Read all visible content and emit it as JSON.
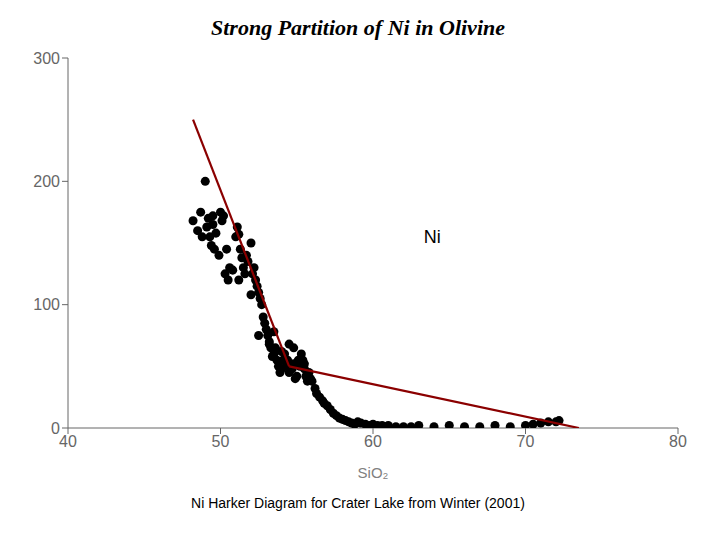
{
  "chart_data": {
    "type": "scatter",
    "title": "Strong Partition of Ni in Olivine",
    "subtitle": "Ni Harker Diagram for Crater Lake from Winter (2001)",
    "xlabel": "SiO₂",
    "xlim": [
      40,
      80
    ],
    "ylim": [
      0,
      300
    ],
    "xticks": [
      40,
      50,
      60,
      70,
      80
    ],
    "yticks": [
      0,
      100,
      200,
      300
    ],
    "grid": false,
    "annotations": [
      {
        "text": "Ni",
        "x": 63,
        "y": 155
      }
    ],
    "series": [
      {
        "type": "scatter",
        "marker": "circle",
        "color": "#000000",
        "x": [
          48.2,
          48.5,
          48.7,
          48.8,
          49.0,
          49.1,
          49.2,
          49.3,
          49.4,
          49.5,
          49.6,
          49.7,
          49.9,
          50.0,
          50.1,
          50.2,
          50.3,
          50.5,
          50.6,
          50.8,
          51.0,
          51.1,
          51.2,
          51.3,
          51.4,
          51.5,
          51.6,
          51.7,
          51.8,
          52.0,
          52.1,
          52.2,
          52.3,
          52.4,
          52.5,
          52.6,
          52.7,
          52.8,
          52.9,
          53.0,
          53.1,
          53.2,
          53.3,
          53.4,
          53.5,
          53.6,
          53.7,
          53.8,
          53.9,
          54.0,
          54.1,
          54.2,
          54.3,
          54.4,
          54.5,
          54.5,
          54.6,
          54.7,
          54.8,
          54.9,
          55.0,
          55.1,
          55.2,
          55.3,
          55.4,
          55.5,
          55.6,
          55.7,
          55.8,
          55.9,
          56.0,
          56.2,
          56.3,
          56.5,
          56.7,
          56.8,
          57.0,
          57.2,
          57.4,
          57.6,
          57.8,
          58.0,
          58.2,
          58.4,
          58.6,
          58.8,
          59.0,
          59.2,
          59.5,
          59.8,
          60.0,
          60.3,
          60.6,
          61.0,
          61.5,
          62.0,
          62.5,
          63.0,
          64.0,
          65.0,
          66.0,
          67.0,
          68.0,
          69.0,
          70.0,
          70.5,
          71.0,
          71.5,
          72.0,
          72.2,
          52.5,
          53.2,
          54.0,
          49.5,
          50.4,
          51.2,
          52.0,
          53.5,
          54.8,
          55.5
        ],
        "values": [
          168,
          160,
          175,
          155,
          200,
          163,
          170,
          155,
          148,
          172,
          145,
          158,
          140,
          175,
          168,
          172,
          125,
          120,
          130,
          128,
          155,
          163,
          157,
          145,
          138,
          130,
          125,
          140,
          135,
          150,
          125,
          130,
          120,
          115,
          110,
          105,
          100,
          90,
          85,
          80,
          75,
          68,
          65,
          58,
          60,
          65,
          55,
          50,
          45,
          48,
          55,
          60,
          50,
          55,
          45,
          68,
          50,
          48,
          52,
          40,
          42,
          55,
          50,
          60,
          55,
          48,
          42,
          38,
          45,
          40,
          38,
          32,
          28,
          25,
          22,
          20,
          18,
          15,
          12,
          10,
          8,
          7,
          6,
          5,
          4,
          3,
          5,
          4,
          3,
          2,
          3,
          2,
          2,
          2,
          1,
          1,
          1,
          2,
          1,
          2,
          1,
          1,
          2,
          1,
          2,
          3,
          4,
          5,
          5,
          6,
          75,
          70,
          62,
          165,
          145,
          120,
          108,
          78,
          65,
          52
        ]
      },
      {
        "type": "line",
        "color": "#8b0000",
        "x": [
          48.2,
          54.5
        ],
        "values": [
          250,
          50
        ]
      },
      {
        "type": "line",
        "color": "#8b0000",
        "x": [
          54.5,
          73.5
        ],
        "values": [
          50,
          0
        ]
      }
    ]
  }
}
